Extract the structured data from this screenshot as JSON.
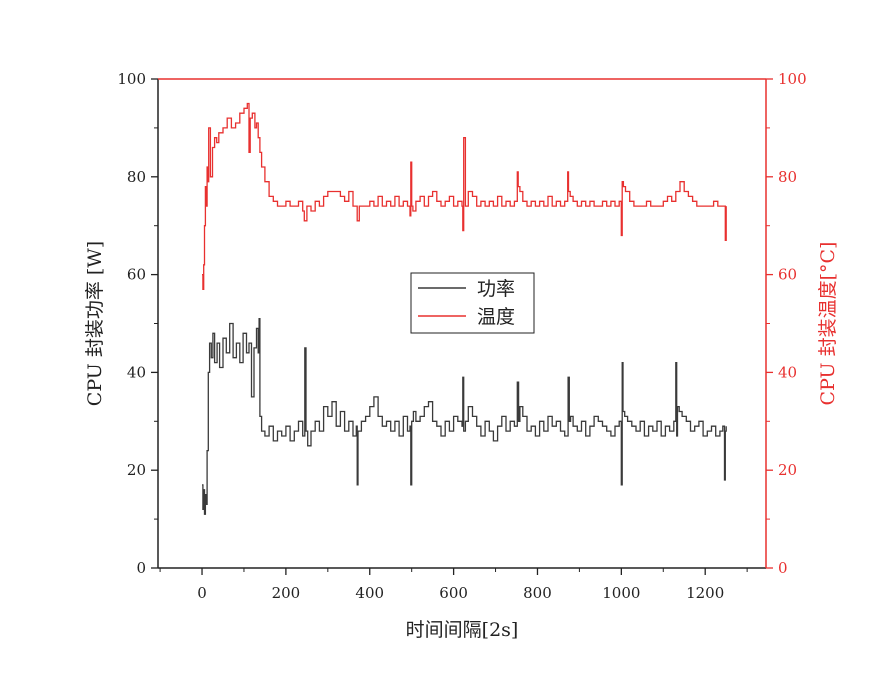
{
  "chart_data": {
    "type": "line",
    "xlabel": "时间间隔[2s]",
    "ylabel_left": "CPU 封装功率 [W]",
    "ylabel_right": "CPU 封装温度[°C]",
    "xlim": [
      -105,
      1345
    ],
    "ylim_left": [
      0,
      100
    ],
    "ylim_right": [
      0,
      100
    ],
    "x_ticks": [
      0,
      200,
      400,
      600,
      800,
      1000,
      1200
    ],
    "y_ticks_left": [
      0,
      20,
      40,
      60,
      80,
      100
    ],
    "y_ticks_right": [
      0,
      20,
      40,
      60,
      80,
      100
    ],
    "grid": false,
    "legend_position": "center",
    "colors": {
      "power": "#3a3a3a",
      "temperature": "#e8302f",
      "right_axis": "#e8302f"
    },
    "series": [
      {
        "name": "功率",
        "axis": "left",
        "x": [
          0,
          2,
          4,
          6,
          8,
          10,
          12,
          15,
          18,
          22,
          26,
          30,
          36,
          42,
          50,
          58,
          66,
          74,
          82,
          90,
          98,
          106,
          112,
          118,
          124,
          130,
          134,
          136,
          138,
          142,
          150,
          160,
          170,
          180,
          190,
          200,
          210,
          220,
          230,
          240,
          245,
          248,
          252,
          260,
          270,
          280,
          290,
          300,
          310,
          320,
          330,
          340,
          350,
          360,
          368,
          370,
          372,
          380,
          390,
          400,
          410,
          420,
          430,
          440,
          450,
          460,
          470,
          480,
          490,
          496,
          498,
          500,
          504,
          510,
          520,
          530,
          540,
          550,
          560,
          570,
          580,
          590,
          600,
          610,
          620,
          622,
          624,
          628,
          635,
          645,
          655,
          665,
          675,
          685,
          695,
          705,
          715,
          725,
          735,
          745,
          752,
          755,
          758,
          765,
          775,
          785,
          795,
          805,
          815,
          825,
          835,
          845,
          855,
          865,
          873,
          876,
          879,
          885,
          895,
          905,
          915,
          925,
          935,
          945,
          955,
          965,
          975,
          985,
          995,
          1000,
          1002,
          1004,
          1008,
          1015,
          1025,
          1035,
          1045,
          1055,
          1065,
          1075,
          1085,
          1095,
          1105,
          1115,
          1125,
          1130,
          1132,
          1134,
          1138,
          1145,
          1155,
          1165,
          1175,
          1185,
          1195,
          1205,
          1215,
          1225,
          1235,
          1242,
          1246,
          1248,
          1250
        ],
        "y": [
          17,
          12,
          16,
          11,
          15,
          13,
          24,
          40,
          46,
          43,
          48,
          42,
          46,
          41,
          47,
          44,
          50,
          43,
          46,
          42,
          48,
          44,
          46,
          35,
          45,
          49,
          44,
          51,
          31,
          28,
          27,
          29,
          26,
          28,
          27,
          29,
          26,
          28,
          30,
          27,
          45,
          28,
          25,
          28,
          30,
          28,
          33,
          31,
          34,
          29,
          32,
          28,
          30,
          27,
          29,
          17,
          28,
          30,
          31,
          33,
          35,
          31,
          29,
          30,
          28,
          30,
          27,
          31,
          28,
          29,
          17,
          30,
          32,
          30,
          31,
          33,
          34,
          30,
          29,
          27,
          30,
          28,
          31,
          30,
          29,
          39,
          28,
          30,
          33,
          31,
          29,
          27,
          30,
          28,
          26,
          29,
          31,
          28,
          30,
          29,
          38,
          30,
          33,
          31,
          28,
          29,
          27,
          30,
          28,
          31,
          29,
          30,
          28,
          27,
          39,
          30,
          31,
          29,
          28,
          30,
          27,
          29,
          31,
          30,
          29,
          28,
          27,
          29,
          30,
          17,
          42,
          32,
          31,
          30,
          29,
          28,
          30,
          27,
          29,
          28,
          30,
          27,
          29,
          28,
          30,
          42,
          27,
          33,
          32,
          31,
          30,
          28,
          29,
          30,
          27,
          28,
          29,
          27,
          28,
          29,
          18,
          28,
          29
        ]
      },
      {
        "name": "温度",
        "axis": "right",
        "x": [
          0,
          2,
          4,
          6,
          8,
          10,
          12,
          14,
          16,
          20,
          25,
          30,
          35,
          40,
          50,
          60,
          70,
          80,
          90,
          100,
          108,
          112,
          115,
          120,
          126,
          130,
          134,
          138,
          142,
          150,
          160,
          170,
          180,
          190,
          200,
          210,
          220,
          230,
          240,
          244,
          250,
          260,
          270,
          280,
          290,
          300,
          310,
          320,
          330,
          340,
          350,
          360,
          368,
          370,
          375,
          380,
          390,
          400,
          410,
          420,
          430,
          440,
          450,
          460,
          470,
          480,
          490,
          496,
          498,
          500,
          503,
          510,
          520,
          530,
          540,
          550,
          560,
          570,
          580,
          590,
          600,
          610,
          620,
          622,
          624,
          628,
          635,
          645,
          655,
          665,
          675,
          685,
          695,
          705,
          715,
          725,
          735,
          745,
          752,
          754,
          758,
          765,
          775,
          785,
          795,
          805,
          815,
          825,
          835,
          845,
          855,
          865,
          872,
          874,
          878,
          885,
          895,
          905,
          915,
          925,
          935,
          945,
          955,
          965,
          975,
          985,
          995,
          1000,
          1002,
          1005,
          1010,
          1020,
          1030,
          1040,
          1050,
          1060,
          1070,
          1080,
          1090,
          1100,
          1110,
          1120,
          1130,
          1140,
          1150,
          1160,
          1170,
          1180,
          1190,
          1200,
          1210,
          1220,
          1230,
          1240,
          1248,
          1250
        ],
        "y": [
          60,
          57,
          62,
          70,
          78,
          74,
          82,
          79,
          90,
          80,
          86,
          88,
          87,
          89,
          90,
          92,
          90,
          91,
          93,
          94,
          95,
          85,
          92,
          93,
          90,
          91,
          88,
          85,
          82,
          79,
          76,
          75,
          74,
          74,
          75,
          74,
          74,
          75,
          73,
          71,
          74,
          73,
          75,
          74,
          76,
          77,
          77,
          77,
          76,
          75,
          77,
          74,
          74,
          71,
          74,
          74,
          74,
          75,
          74,
          76,
          74,
          75,
          74,
          76,
          74,
          75,
          74,
          72,
          83,
          74,
          73,
          75,
          76,
          74,
          76,
          77,
          75,
          74,
          75,
          76,
          74,
          75,
          74,
          69,
          88,
          74,
          77,
          76,
          74,
          75,
          74,
          75,
          74,
          76,
          74,
          75,
          74,
          75,
          81,
          78,
          77,
          75,
          74,
          75,
          74,
          75,
          74,
          76,
          74,
          75,
          74,
          75,
          81,
          77,
          76,
          75,
          74,
          75,
          74,
          75,
          74,
          74,
          75,
          74,
          75,
          74,
          75,
          68,
          79,
          78,
          77,
          75,
          74,
          74,
          74,
          75,
          74,
          74,
          74,
          75,
          76,
          75,
          77,
          79,
          77,
          76,
          75,
          74,
          74,
          74,
          74,
          75,
          74,
          74,
          67,
          74
        ]
      }
    ]
  }
}
